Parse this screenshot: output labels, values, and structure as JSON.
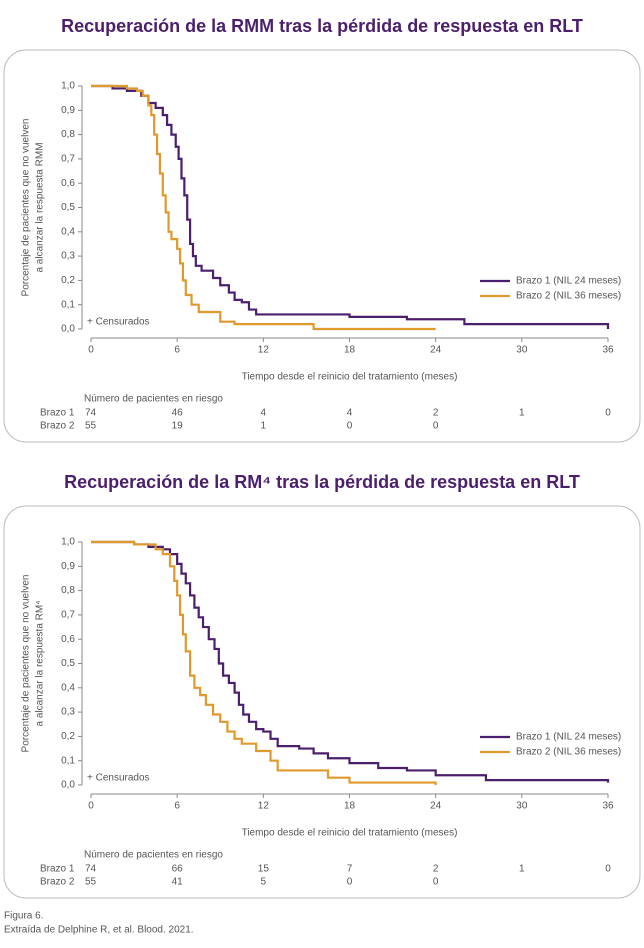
{
  "chart_data": [
    {
      "type": "line",
      "step": true,
      "title": "Recuperación de la RMM tras la pérdida de respuesta en RLT",
      "ylabel": [
        "Porcentaje de pacientes que no vuelven",
        "a alcanzar la respuesta RMM"
      ],
      "xlabel": "Tiempo desde el reinicio del tratamiento (meses)",
      "note": "+ Censurados",
      "legend": "right",
      "xlim": [
        0,
        36
      ],
      "xticks": [
        0,
        6,
        12,
        18,
        24,
        30,
        36
      ],
      "ylim": [
        0,
        1
      ],
      "yticks": [
        {
          "value": 0,
          "label": "0,0"
        },
        {
          "value": 0.1,
          "label": "0,1"
        },
        {
          "value": 0.2,
          "label": "0,2"
        },
        {
          "value": 0.3,
          "label": "0,3"
        },
        {
          "value": 0.4,
          "label": "0,4"
        },
        {
          "value": 0.5,
          "label": "0,5"
        },
        {
          "value": 0.6,
          "label": "0,6"
        },
        {
          "value": 0.7,
          "label": "0,7"
        },
        {
          "value": 0.8,
          "label": "0,8"
        },
        {
          "value": 0.9,
          "label": "0,9"
        },
        {
          "value": 1,
          "label": "1,0"
        }
      ],
      "series": [
        {
          "name": "Brazo 1 (NIL 24 meses)",
          "color": "#4b1f6e",
          "x": [
            0,
            1.5,
            2.5,
            3.5,
            4,
            4.5,
            5,
            5.3,
            5.6,
            5.9,
            6.1,
            6.3,
            6.5,
            6.7,
            6.9,
            7.1,
            7.3,
            7.7,
            8.5,
            9,
            9.6,
            10,
            10.5,
            11,
            11.5,
            18,
            22,
            26,
            35.8,
            36
          ],
          "values": [
            1,
            0.99,
            0.98,
            0.96,
            0.93,
            0.91,
            0.88,
            0.84,
            0.8,
            0.75,
            0.7,
            0.62,
            0.55,
            0.45,
            0.35,
            0.3,
            0.26,
            0.24,
            0.21,
            0.18,
            0.15,
            0.12,
            0.11,
            0.08,
            0.06,
            0.05,
            0.04,
            0.02,
            0.02,
            0
          ]
        },
        {
          "name": "Brazo 2 (NIL 36 meses)",
          "color": "#e0992b",
          "x": [
            0,
            2.5,
            3.2,
            3.6,
            4,
            4.2,
            4.4,
            4.6,
            4.8,
            5,
            5.2,
            5.4,
            5.6,
            6,
            6.2,
            6.4,
            6.6,
            7,
            7.5,
            9,
            10,
            15.5,
            24
          ],
          "values": [
            1,
            0.99,
            0.98,
            0.96,
            0.92,
            0.88,
            0.8,
            0.72,
            0.64,
            0.55,
            0.48,
            0.4,
            0.37,
            0.33,
            0.27,
            0.2,
            0.14,
            0.1,
            0.07,
            0.03,
            0.02,
            0,
            0
          ]
        }
      ],
      "risk_table": {
        "title": "Número de pacientes en riesgo",
        "rows": [
          {
            "label": "Brazo 1",
            "values": [
              74,
              46,
              4,
              4,
              2,
              1,
              0
            ]
          },
          {
            "label": "Brazo 2",
            "values": [
              55,
              19,
              1,
              0,
              0
            ]
          }
        ]
      }
    },
    {
      "type": "line",
      "step": true,
      "title": "Recuperación de la RM⁴ tras la pérdida de respuesta en RLT",
      "ylabel": [
        "Porcentaje de pacientes que no vuelven",
        "a alcanzar la respuesta RM⁴"
      ],
      "xlabel": "Tiempo desde el reinicio del tratamiento (meses)",
      "note": "+ Censurados",
      "legend": "right",
      "xlim": [
        0,
        36
      ],
      "xticks": [
        0,
        6,
        12,
        18,
        24,
        30,
        36
      ],
      "ylim": [
        0,
        1
      ],
      "yticks": [
        {
          "value": 0,
          "label": "0,0"
        },
        {
          "value": 0.1,
          "label": "0,1"
        },
        {
          "value": 0.2,
          "label": "0,2"
        },
        {
          "value": 0.3,
          "label": "0,3"
        },
        {
          "value": 0.4,
          "label": "0,4"
        },
        {
          "value": 0.5,
          "label": "0,5"
        },
        {
          "value": 0.6,
          "label": "0,6"
        },
        {
          "value": 0.7,
          "label": "0,7"
        },
        {
          "value": 0.8,
          "label": "0,8"
        },
        {
          "value": 0.9,
          "label": "0,9"
        },
        {
          "value": 1,
          "label": "1,0"
        }
      ],
      "series": [
        {
          "name": "Brazo 1 (NIL 24 meses)",
          "color": "#4b1f6e",
          "x": [
            0,
            3,
            4,
            5,
            5.5,
            6,
            6.3,
            6.6,
            6.9,
            7.2,
            7.5,
            7.8,
            8.2,
            8.6,
            8.9,
            9.2,
            9.6,
            10,
            10.3,
            10.6,
            11,
            11.5,
            12,
            12.5,
            13,
            14.5,
            15.5,
            16.5,
            18,
            20,
            22,
            24,
            27.5,
            36
          ],
          "values": [
            1,
            0.99,
            0.98,
            0.97,
            0.95,
            0.91,
            0.87,
            0.83,
            0.78,
            0.73,
            0.69,
            0.65,
            0.6,
            0.56,
            0.5,
            0.45,
            0.42,
            0.38,
            0.33,
            0.29,
            0.26,
            0.23,
            0.22,
            0.19,
            0.16,
            0.15,
            0.13,
            0.11,
            0.09,
            0.07,
            0.06,
            0.04,
            0.02,
            0.01
          ]
        },
        {
          "name": "Brazo 2 (NIL 36 meses)",
          "color": "#e0992b",
          "x": [
            0,
            3,
            4.5,
            5,
            5.5,
            5.8,
            6,
            6.2,
            6.4,
            6.6,
            6.9,
            7.2,
            7.6,
            8,
            8.5,
            9,
            9.5,
            10,
            10.5,
            11.5,
            12.5,
            13,
            16.5,
            18,
            24
          ],
          "values": [
            1,
            0.99,
            0.97,
            0.95,
            0.9,
            0.84,
            0.78,
            0.7,
            0.62,
            0.55,
            0.45,
            0.4,
            0.37,
            0.33,
            0.29,
            0.26,
            0.22,
            0.19,
            0.17,
            0.14,
            0.1,
            0.06,
            0.03,
            0.01,
            0
          ]
        }
      ],
      "risk_table": {
        "title": "Número de pacientes en riesgo",
        "rows": [
          {
            "label": "Brazo 1",
            "values": [
              74,
              66,
              15,
              7,
              2,
              1,
              0
            ]
          },
          {
            "label": "Brazo 2",
            "values": [
              55,
              41,
              5,
              0,
              0
            ]
          }
        ]
      }
    }
  ],
  "footer": {
    "figure": "Figura 6.",
    "source": "Extraída de Delphine R, et al. Blood. 2021."
  }
}
